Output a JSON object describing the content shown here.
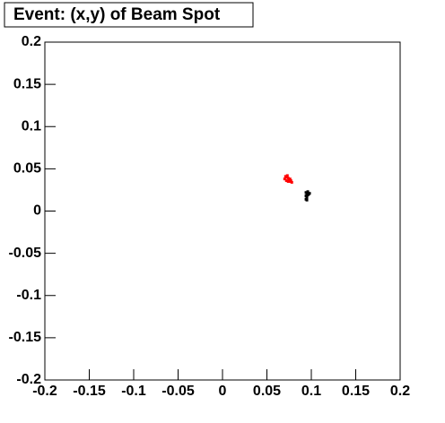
{
  "chart_data": {
    "type": "scatter",
    "title": "Event: (x,y) of Beam Spot",
    "xlim": [
      -0.2,
      0.2
    ],
    "ylim": [
      -0.2,
      0.2
    ],
    "xticks": [
      -0.2,
      -0.15,
      -0.1,
      -0.05,
      0,
      0.05,
      0.1,
      0.15,
      0.2
    ],
    "yticks": [
      -0.2,
      -0.15,
      -0.1,
      -0.05,
      0,
      0.05,
      0.1,
      0.15,
      0.2
    ],
    "grid": false,
    "series": [
      {
        "color": "#ff0000",
        "x": [
          0.07,
          0.071,
          0.072,
          0.073,
          0.074,
          0.075,
          0.076,
          0.077,
          0.078,
          0.072,
          0.074,
          0.076
        ],
        "y": [
          0.038,
          0.041,
          0.036,
          0.042,
          0.039,
          0.037,
          0.035,
          0.036,
          0.034,
          0.04,
          0.035,
          0.038
        ]
      },
      {
        "color": "#000000",
        "x": [
          0.094,
          0.094,
          0.095,
          0.095,
          0.096,
          0.097,
          0.098,
          0.096,
          0.094,
          0.095
        ],
        "y": [
          0.014,
          0.018,
          0.016,
          0.021,
          0.023,
          0.02,
          0.021,
          0.019,
          0.022,
          0.013
        ]
      }
    ]
  }
}
